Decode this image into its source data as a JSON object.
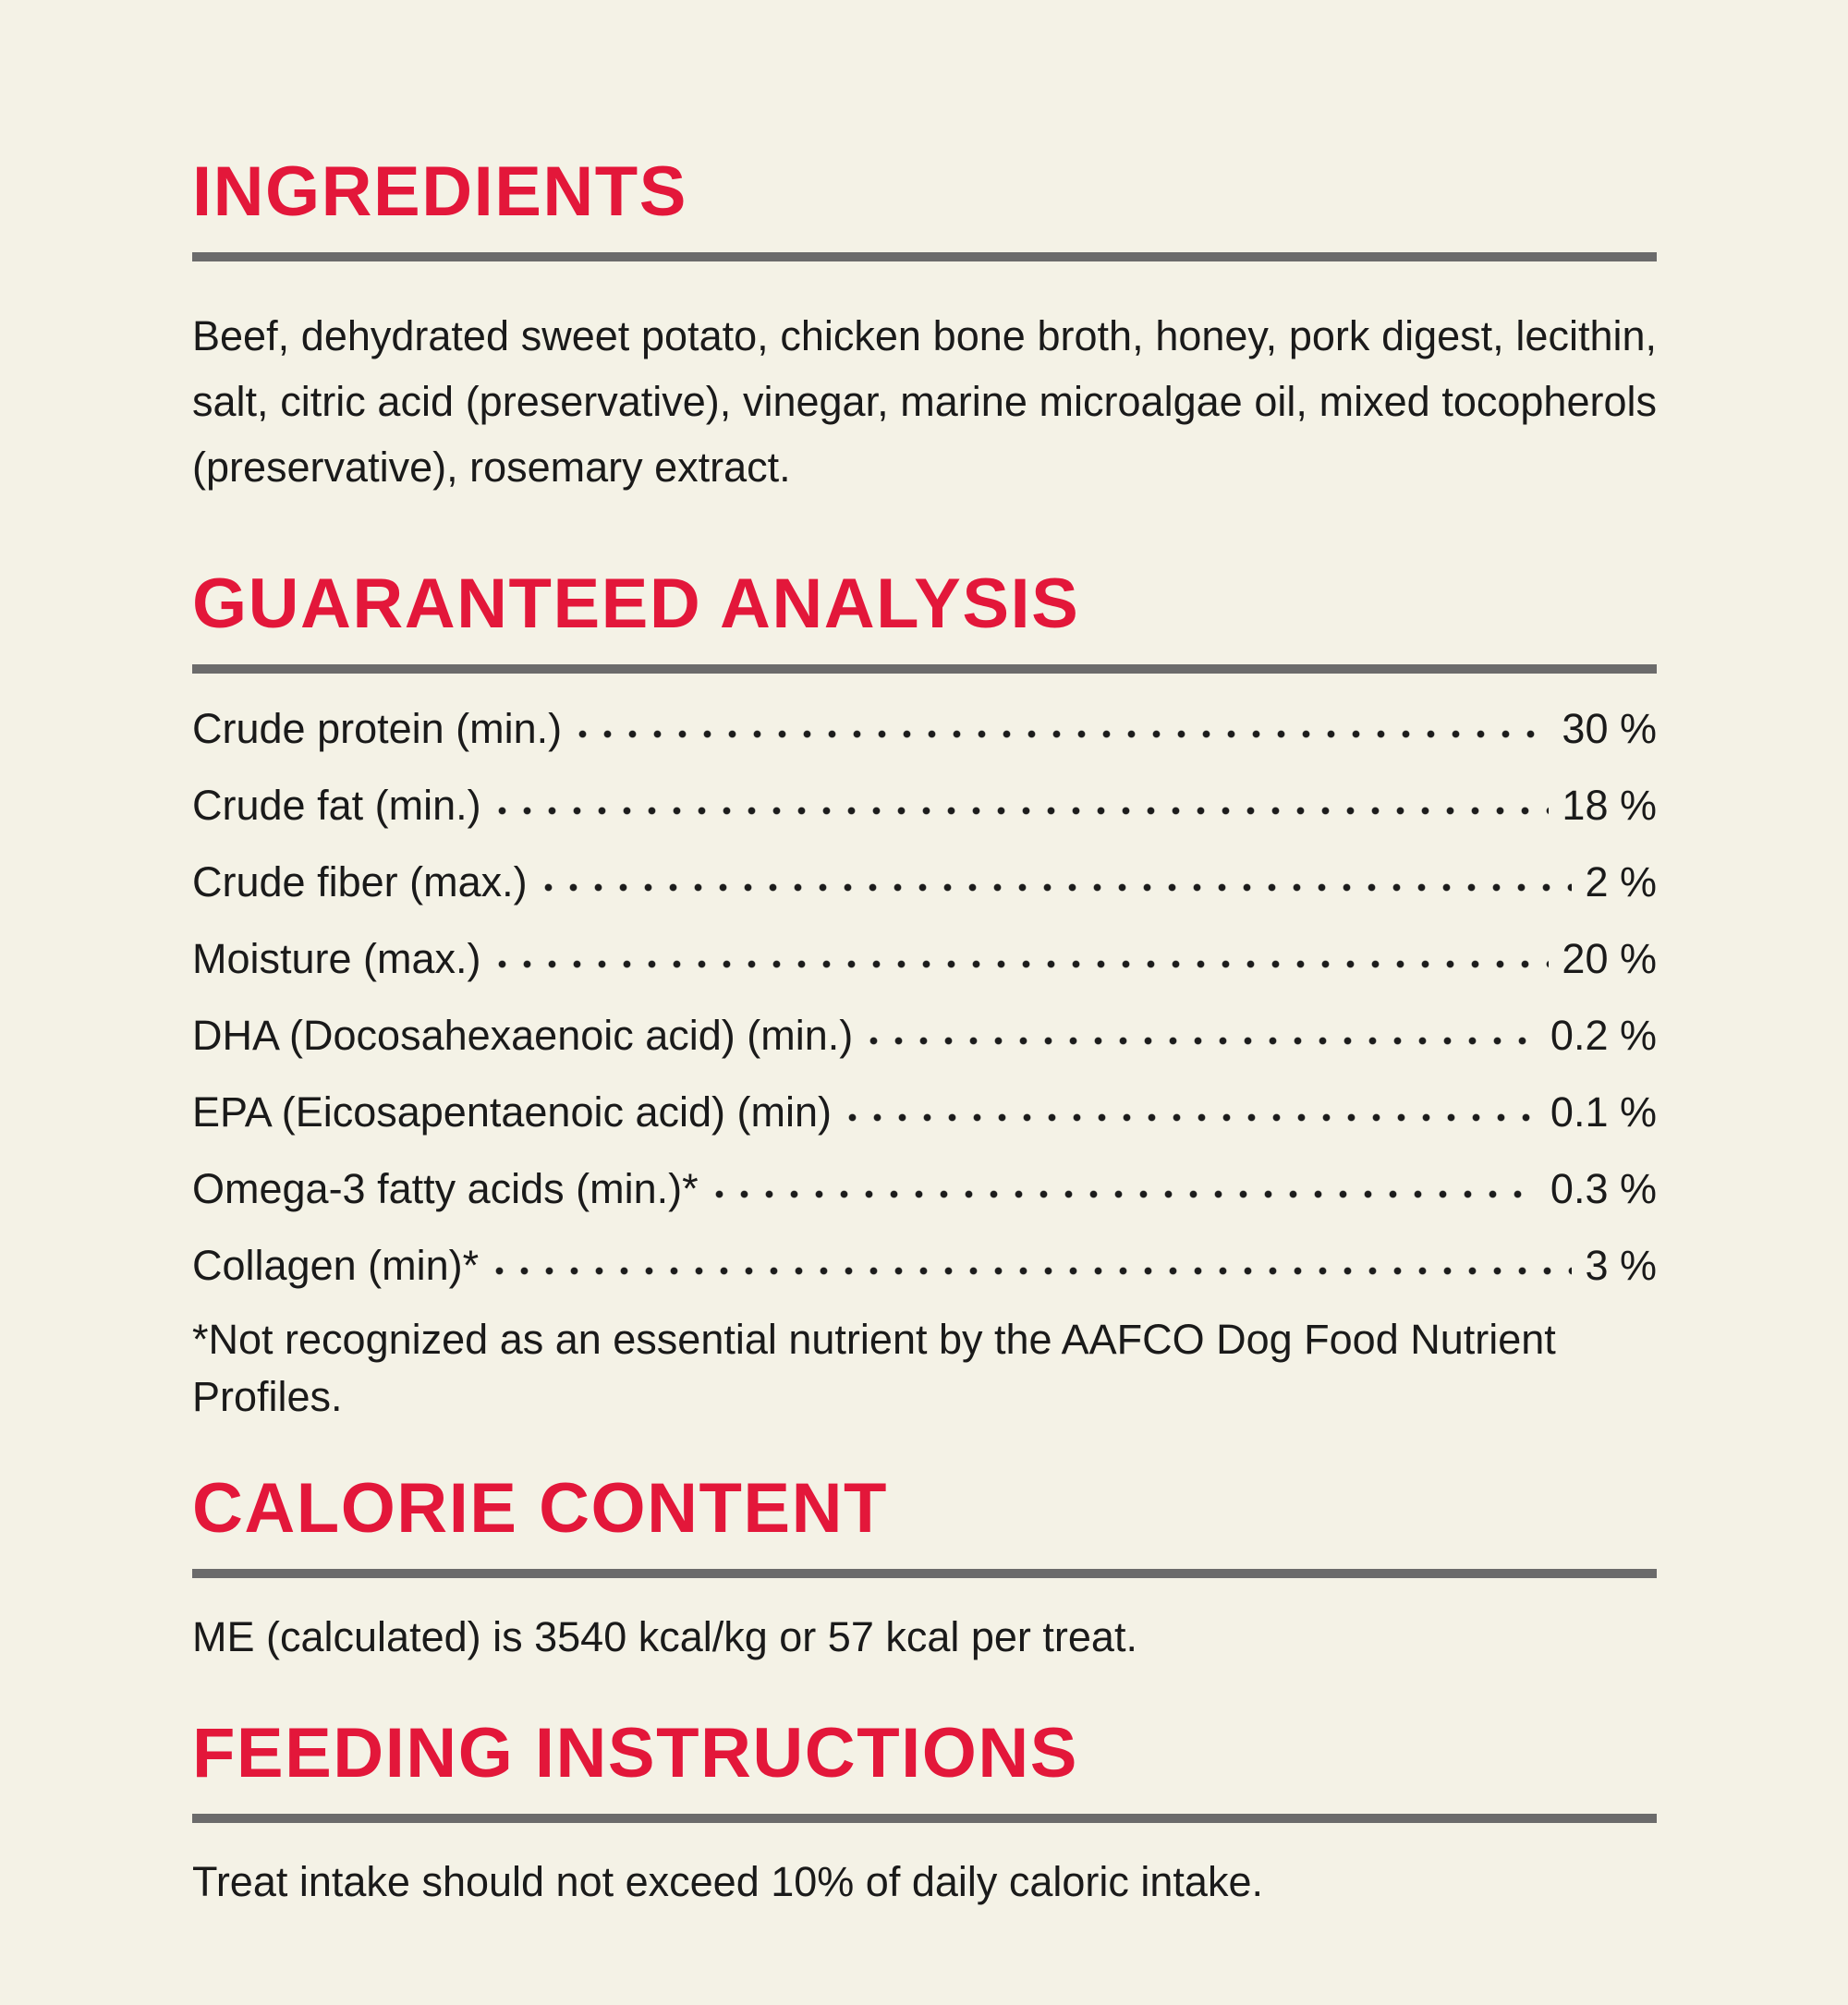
{
  "page": {
    "background_color": "#F4F2E6",
    "accent_red": "#E3173A",
    "rule_gray": "#6B6B6B",
    "text_black": "#1A1A1A"
  },
  "ingredients": {
    "heading": "INGREDIENTS",
    "body": "Beef, dehydrated sweet potato, chicken bone broth, honey, pork digest, lecithin, salt, citric acid (preservative), vinegar, marine microalgae oil, mixed tocopherols (preservative), rosemary extract."
  },
  "guaranteed_analysis": {
    "heading": "GUARANTEED ANALYSIS",
    "rows": [
      {
        "label": "Crude protein (min.)",
        "value": "30 %"
      },
      {
        "label": "Crude fat (min.)",
        "value": "18 %"
      },
      {
        "label": "Crude fiber (max.)",
        "value": "2 %"
      },
      {
        "label": "Moisture (max.)",
        "value": "20 %"
      },
      {
        "label": "DHA (Docosahexaenoic acid) (min.)",
        "value": "0.2 %"
      },
      {
        "label": "EPA (Eicosapentaenoic acid) (min)",
        "value": "0.1 %"
      },
      {
        "label": "Omega-3 fatty acids (min.)*",
        "value": "0.3 %"
      },
      {
        "label": "Collagen (min)*",
        "value": "3 %"
      }
    ],
    "footnote": "*Not recognized as an essential nutrient by the AAFCO Dog Food Nutrient Profiles."
  },
  "calorie_content": {
    "heading": "CALORIE CONTENT",
    "body": "ME (calculated) is 3540 kcal/kg or 57 kcal per treat."
  },
  "feeding_instructions": {
    "heading": "FEEDING INSTRUCTIONS",
    "body": "Treat intake should not exceed 10% of daily caloric intake."
  }
}
